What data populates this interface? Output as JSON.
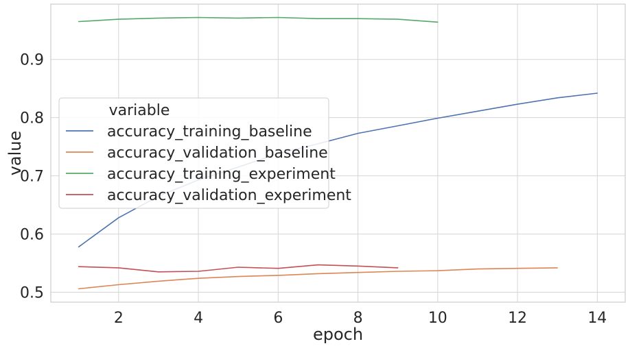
{
  "chart_data": {
    "type": "line",
    "xlabel": "epoch",
    "ylabel": "value",
    "xlim": [
      0.3,
      14.7
    ],
    "ylim": [
      0.483,
      0.995
    ],
    "xticks": [
      2,
      4,
      6,
      8,
      10,
      12,
      14
    ],
    "yticks": [
      0.5,
      0.6,
      0.7,
      0.8,
      0.9
    ],
    "grid": true,
    "legend": {
      "title": "variable",
      "placement": "center-left"
    },
    "series": [
      {
        "name": "accuracy_training_baseline",
        "color": "#4c72b0",
        "x": [
          1,
          2,
          3,
          4,
          5,
          6,
          7,
          8,
          9,
          10,
          11,
          12,
          13,
          14
        ],
        "values": [
          0.578,
          0.628,
          0.665,
          0.693,
          0.715,
          0.738,
          0.755,
          0.773,
          0.786,
          0.799,
          0.811,
          0.823,
          0.834,
          0.842
        ]
      },
      {
        "name": "accuracy_validation_baseline",
        "color": "#dd8452",
        "x": [
          1,
          2,
          3,
          4,
          5,
          6,
          7,
          8,
          9,
          10,
          11,
          12,
          13
        ],
        "values": [
          0.506,
          0.513,
          0.519,
          0.524,
          0.527,
          0.529,
          0.532,
          0.534,
          0.536,
          0.537,
          0.54,
          0.541,
          0.542
        ]
      },
      {
        "name": "accuracy_training_experiment",
        "color": "#55a868",
        "x": [
          1,
          2,
          3,
          4,
          5,
          6,
          7,
          8,
          9,
          10
        ],
        "values": [
          0.965,
          0.969,
          0.971,
          0.972,
          0.971,
          0.972,
          0.97,
          0.97,
          0.969,
          0.964
        ]
      },
      {
        "name": "accuracy_validation_experiment",
        "color": "#c44e52",
        "x": [
          1,
          2,
          3,
          4,
          5,
          6,
          7,
          8,
          9
        ],
        "values": [
          0.544,
          0.542,
          0.535,
          0.536,
          0.543,
          0.541,
          0.547,
          0.545,
          0.542
        ]
      }
    ]
  }
}
